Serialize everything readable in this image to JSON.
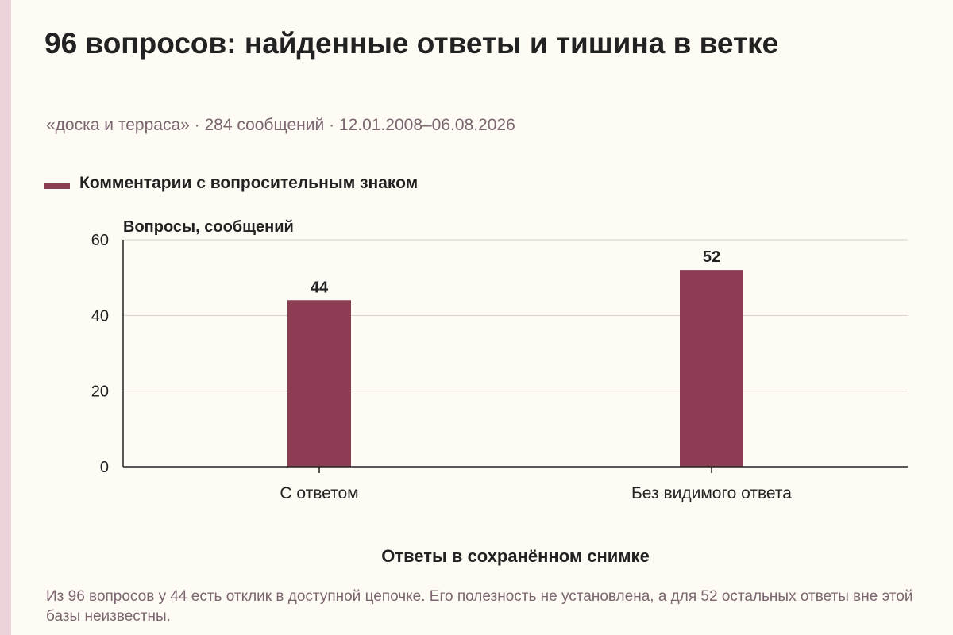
{
  "title": "96 вопросов: найденные ответы и тишина в ветке",
  "subtitle": "«доска и терраса» · 284 сообщений · 12.01.2008–06.08.2026",
  "colors": {
    "bar": "#8c3d53",
    "grid": "#d4d0c8",
    "axis": "#222222",
    "text": "#222222",
    "muted": "#7b6670",
    "background": "#fdfbf4"
  },
  "chart_data": {
    "type": "bar",
    "categories": [
      "С ответом",
      "Без видимого ответа"
    ],
    "series": [
      {
        "name": "Комментарии с вопросительным знаком",
        "values": [
          44,
          52
        ]
      }
    ],
    "ylabel": "Вопросы, сообщений",
    "xlabel": "Ответы в сохранённом снимке",
    "ylim": [
      0,
      60
    ],
    "yticks": [
      0,
      20,
      40,
      60
    ],
    "grid": true,
    "legend": "top-left",
    "data_labels": true
  },
  "note": "Из 96 вопросов у 44 есть отклик в доступной цепочке. Его полезность не установлена, а для 52 остальных ответы вне этой базы неизвестны."
}
